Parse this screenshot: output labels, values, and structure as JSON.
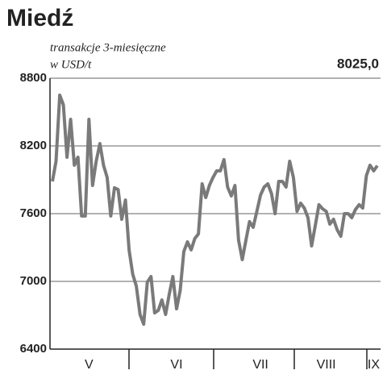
{
  "chart_data": {
    "type": "line",
    "title": "Miedź",
    "subtitle": "transakcje 3-miesięczne",
    "y_label": "w USD/t",
    "categories": [
      null,
      null,
      null,
      null,
      null,
      null,
      null,
      null,
      null,
      null,
      "V",
      null,
      null,
      null,
      null,
      null,
      null,
      null,
      null,
      null,
      null,
      null,
      null,
      null,
      null,
      null,
      null,
      null,
      null,
      null,
      null,
      null,
      null,
      null,
      "VI",
      null,
      null,
      null,
      null,
      null,
      null,
      null,
      null,
      null,
      null,
      null,
      null,
      null,
      null,
      null,
      null,
      null,
      null,
      null,
      null,
      null,
      null,
      "VII",
      null,
      null,
      null,
      null,
      null,
      null,
      null,
      null,
      null,
      null,
      null,
      null,
      null,
      null,
      null,
      null,
      null,
      "VIII",
      null,
      null,
      null,
      null,
      null,
      null,
      null,
      null,
      null,
      null,
      null,
      null,
      "IX",
      null
    ],
    "values": [
      7886,
      8064,
      8650,
      8564,
      8100,
      8436,
      8029,
      8100,
      7579,
      7579,
      8436,
      7850,
      8064,
      8221,
      8029,
      7921,
      7579,
      7829,
      7814,
      7550,
      7721,
      7279,
      7064,
      6957,
      6707,
      6621,
      6993,
      7043,
      6721,
      6743,
      6836,
      6707,
      6886,
      7043,
      6757,
      6921,
      7264,
      7350,
      7279,
      7379,
      7421,
      7864,
      7743,
      7850,
      7921,
      7979,
      7979,
      8079,
      7836,
      7757,
      7850,
      7364,
      7193,
      7364,
      7529,
      7479,
      7621,
      7764,
      7836,
      7864,
      7779,
      7600,
      7886,
      7886,
      7836,
      8064,
      7921,
      7621,
      7693,
      7650,
      7564,
      7314,
      7493,
      7679,
      7643,
      7621,
      7507,
      7550,
      7457,
      7400,
      7600,
      7600,
      7564,
      7636,
      7679,
      7650,
      7936,
      8029,
      7979,
      8025
    ],
    "value_labels": [
      null,
      null,
      null,
      null,
      null,
      null,
      null,
      null,
      null,
      null,
      null,
      null,
      null,
      null,
      null,
      null,
      null,
      null,
      null,
      null,
      null,
      null,
      null,
      null,
      null,
      null,
      null,
      null,
      null,
      null,
      null,
      null,
      null,
      null,
      null,
      null,
      null,
      null,
      null,
      null,
      null,
      null,
      null,
      null,
      null,
      null,
      null,
      null,
      null,
      null,
      null,
      null,
      null,
      null,
      null,
      null,
      null,
      null,
      null,
      null,
      null,
      null,
      null,
      null,
      null,
      null,
      null,
      null,
      null,
      null,
      null,
      null,
      null,
      null,
      null,
      null,
      null,
      null,
      null,
      null,
      null,
      null,
      null,
      null,
      null,
      null,
      null,
      null,
      null,
      "8025,0"
    ],
    "color": "#7a7a7a",
    "ylim": [
      6400,
      8800
    ],
    "yticks": [
      6400,
      7000,
      7600,
      8200,
      8800
    ],
    "grid": true
  }
}
